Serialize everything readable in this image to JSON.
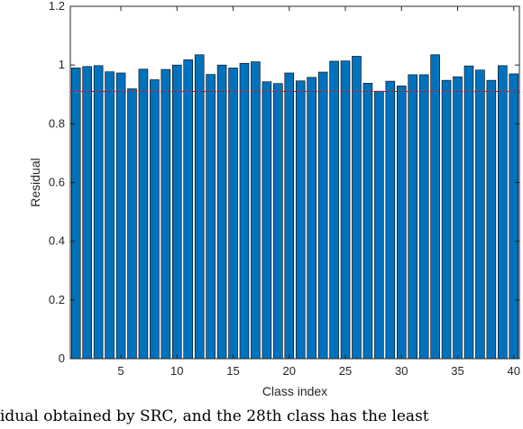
{
  "chart_data": {
    "type": "bar",
    "xlabel": "Class index",
    "ylabel": "Residual",
    "xlim": [
      0.5,
      40.5
    ],
    "ylim": [
      0,
      1.2
    ],
    "x_ticks": [
      5,
      10,
      15,
      20,
      25,
      30,
      35,
      40
    ],
    "y_ticks": [
      0,
      0.2,
      0.4,
      0.6,
      0.8,
      1,
      1.2
    ],
    "y_tick_labels": [
      "0",
      "0.2",
      "0.4",
      "0.6",
      "0.8",
      "1",
      "1.2"
    ],
    "threshold": 0.91,
    "categories": [
      1,
      2,
      3,
      4,
      5,
      6,
      7,
      8,
      9,
      10,
      11,
      12,
      13,
      14,
      15,
      16,
      17,
      18,
      19,
      20,
      21,
      22,
      23,
      24,
      25,
      26,
      27,
      28,
      29,
      30,
      31,
      32,
      33,
      34,
      35,
      36,
      37,
      38,
      39,
      40
    ],
    "values": [
      0.99,
      0.995,
      0.998,
      0.977,
      0.973,
      0.919,
      0.986,
      0.95,
      0.985,
      1.0,
      1.018,
      1.035,
      0.968,
      1.0,
      0.99,
      1.006,
      1.011,
      0.943,
      0.937,
      0.973,
      0.946,
      0.958,
      0.976,
      1.013,
      1.014,
      1.03,
      0.938,
      0.911,
      0.945,
      0.929,
      0.967,
      0.967,
      1.035,
      0.948,
      0.96,
      0.997,
      0.983,
      0.948,
      0.998,
      0.97
    ],
    "bar_color": "#0072BD",
    "threshold_color": "#FF0000",
    "grid": false
  },
  "caption": "idual obtained by SRC, and the 28th class has the least"
}
